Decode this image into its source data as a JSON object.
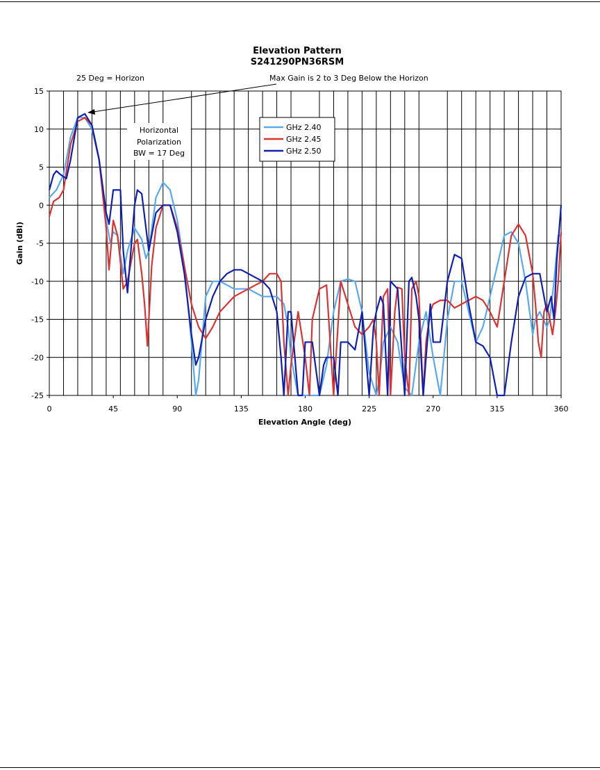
{
  "chart_data": {
    "type": "line",
    "title": "Elevation Pattern",
    "subtitle": "S241290PN36RSM",
    "xlabel": "Elevation Angle (deg)",
    "ylabel": "Gain (dBi)",
    "xlim": [
      0,
      360
    ],
    "ylim": [
      -25,
      15
    ],
    "xticks": [
      0,
      45,
      90,
      135,
      180,
      225,
      270,
      315,
      360
    ],
    "yticks": [
      15,
      10,
      5,
      0,
      -5,
      -10,
      -15,
      -20,
      -25
    ],
    "grid": true,
    "legend_position": "top-center",
    "annotations": {
      "horizon_note": "25 Deg = Horizon",
      "max_gain_note": "Max Gain is 2 to 3 Deg Below the Horizon",
      "pol_line1": "Horizontal",
      "pol_line2": "Polarization",
      "pol_line3": "BW = 17 Deg"
    },
    "series": [
      {
        "name": "GHz 2.40",
        "color": "#5aa9ee",
        "x": [
          0,
          5,
          10,
          15,
          20,
          25,
          30,
          35,
          40,
          43,
          45,
          48,
          52,
          55,
          60,
          65,
          68,
          70,
          75,
          80,
          85,
          90,
          95,
          100,
          103,
          105,
          110,
          115,
          120,
          130,
          140,
          150,
          155,
          160,
          165,
          168,
          170,
          175,
          180,
          185,
          190,
          195,
          200,
          205,
          210,
          215,
          220,
          225,
          230,
          232,
          235,
          240,
          245,
          250,
          255,
          260,
          265,
          270,
          275,
          280,
          285,
          290,
          295,
          300,
          305,
          310,
          315,
          320,
          325,
          330,
          335,
          340,
          342,
          345,
          350,
          352,
          355,
          358,
          360
        ],
        "y": [
          1,
          2,
          4,
          9,
          11.5,
          11.5,
          10,
          6,
          -2,
          -5,
          -3.5,
          -4,
          -9,
          -6,
          -3,
          -4.5,
          -7,
          -6,
          1,
          3,
          2,
          -2,
          -8,
          -18,
          -25,
          -23,
          -12,
          -10,
          -10,
          -11,
          -11,
          -12,
          -12,
          -12,
          -13,
          -16,
          -20,
          -25,
          -25,
          -25,
          -25,
          -21,
          -14,
          -10,
          -9.7,
          -10,
          -14,
          -22,
          -25,
          -23,
          -18,
          -16,
          -18,
          -24,
          -25,
          -18,
          -14,
          -20,
          -25,
          -15,
          -10,
          -10,
          -14,
          -18,
          -16,
          -12,
          -8,
          -4,
          -3.5,
          -5,
          -10,
          -17,
          -15,
          -14,
          -16,
          -15,
          -10,
          -4,
          -4
        ]
      },
      {
        "name": "GHz 2.45",
        "color": "#d93434",
        "x": [
          0,
          3,
          7,
          10,
          15,
          20,
          25,
          30,
          35,
          40,
          42,
          45,
          48,
          52,
          55,
          60,
          62,
          65,
          67,
          69,
          72,
          75,
          80,
          85,
          90,
          95,
          100,
          105,
          110,
          115,
          120,
          130,
          140,
          150,
          155,
          160,
          163,
          165,
          168,
          170,
          175,
          180,
          183,
          185,
          190,
          195,
          200,
          205,
          210,
          215,
          220,
          225,
          228,
          230,
          232,
          235,
          238,
          240,
          243,
          245,
          248,
          250,
          253,
          255,
          258,
          260,
          263,
          265,
          268,
          270,
          275,
          280,
          285,
          290,
          295,
          300,
          305,
          310,
          315,
          320,
          325,
          330,
          335,
          340,
          342,
          344,
          346,
          348,
          350,
          352,
          354,
          356,
          358,
          360
        ],
        "y": [
          -1.5,
          0.5,
          1,
          2,
          8,
          11,
          11.5,
          10.5,
          6,
          -3,
          -8.5,
          -2,
          -4,
          -11,
          -10,
          -5,
          -4.5,
          -9,
          -13,
          -18.5,
          -8,
          -3,
          0,
          0,
          -3,
          -8,
          -13,
          -16,
          -17.5,
          -16,
          -14,
          -12,
          -11,
          -10,
          -9,
          -9,
          -10,
          -18,
          -25,
          -21,
          -14,
          -20,
          -25,
          -15,
          -11,
          -10.5,
          -25,
          -10,
          -13,
          -16,
          -17,
          -16,
          -15,
          -18,
          -25,
          -12,
          -11,
          -25,
          -14,
          -10.8,
          -11,
          -20,
          -25,
          -11,
          -10,
          -12,
          -25,
          -18,
          -14,
          -13,
          -12.5,
          -12.5,
          -13.5,
          -13,
          -12.5,
          -12,
          -12.5,
          -14,
          -16,
          -10,
          -4,
          -2.5,
          -4,
          -9,
          -13,
          -18,
          -20,
          -14,
          -13,
          -15,
          -17,
          -14,
          -10,
          -3.5
        ]
      },
      {
        "name": "GHz 2.50",
        "color": "#0f1fb0",
        "x": [
          0,
          3,
          5,
          8,
          12,
          15,
          20,
          25,
          30,
          35,
          40,
          42,
          45,
          50,
          52,
          55,
          60,
          62,
          65,
          68,
          70,
          75,
          80,
          85,
          90,
          95,
          100,
          103,
          105,
          110,
          115,
          120,
          125,
          130,
          135,
          140,
          145,
          150,
          155,
          160,
          163,
          165,
          168,
          170,
          175,
          178,
          180,
          185,
          190,
          193,
          195,
          200,
          203,
          205,
          210,
          215,
          220,
          225,
          228,
          230,
          233,
          235,
          238,
          240,
          245,
          250,
          253,
          255,
          258,
          260,
          263,
          265,
          268,
          270,
          275,
          280,
          285,
          290,
          295,
          300,
          305,
          310,
          315,
          320,
          325,
          330,
          335,
          340,
          345,
          348,
          350,
          353,
          355,
          357,
          360
        ],
        "y": [
          2,
          4,
          4.5,
          4,
          3.5,
          6,
          11.5,
          12,
          10.5,
          6,
          -1,
          -2.5,
          2,
          2,
          -6,
          -11.5,
          0,
          2,
          1.5,
          -3,
          -6,
          -1,
          0,
          0,
          -3.5,
          -9,
          -17,
          -21,
          -20,
          -15,
          -12,
          -10,
          -9,
          -8.5,
          -8.5,
          -9,
          -9.5,
          -10,
          -11,
          -14,
          -20,
          -25,
          -14,
          -14,
          -25,
          -25,
          -18,
          -18,
          -25,
          -21,
          -20,
          -20,
          -25,
          -18,
          -18,
          -19,
          -14,
          -25,
          -16,
          -14,
          -12,
          -13,
          -25,
          -10,
          -11,
          -25,
          -10,
          -9.5,
          -12,
          -15,
          -25,
          -20,
          -13,
          -18,
          -18,
          -10,
          -6.5,
          -7,
          -13,
          -18,
          -18.5,
          -20,
          -25,
          -25,
          -18,
          -12,
          -9.5,
          -9,
          -9,
          -12,
          -14,
          -12,
          -15,
          -7,
          0
        ]
      }
    ]
  }
}
